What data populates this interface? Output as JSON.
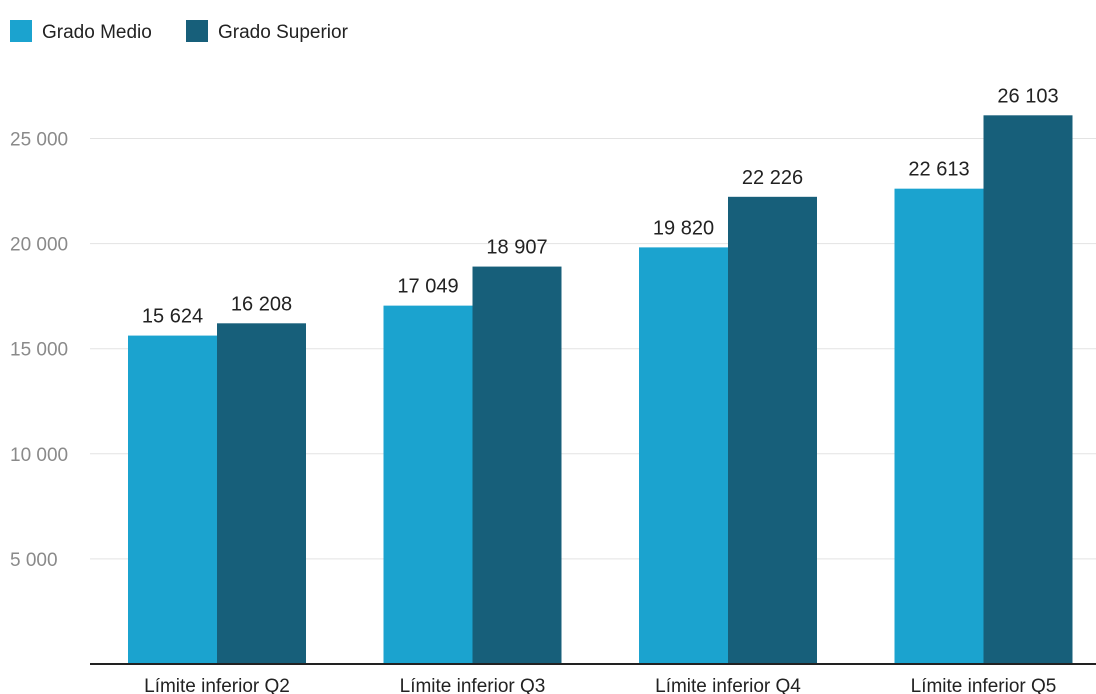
{
  "chart_data": {
    "type": "bar",
    "title": "",
    "xlabel": "",
    "ylabel": "",
    "categories": [
      "Límite inferior Q2",
      "Límite inferior Q3",
      "Límite inferior Q4",
      "Límite inferior Q5"
    ],
    "series": [
      {
        "name": "Grado Medio",
        "color": "#1ba3cf",
        "values": [
          15624,
          17049,
          19820,
          22613
        ]
      },
      {
        "name": "Grado Superior",
        "color": "#175f7a",
        "values": [
          16208,
          18907,
          22226,
          26103
        ]
      }
    ],
    "value_labels": [
      [
        "15 624",
        "17 049",
        "19 820",
        "22 613"
      ],
      [
        "16 208",
        "18 907",
        "22 226",
        "26 103"
      ]
    ],
    "y_ticks": [
      5000,
      10000,
      15000,
      20000,
      25000
    ],
    "y_tick_labels": [
      "5 000",
      "10 000",
      "15 000",
      "20 000",
      "25 000"
    ],
    "ylim": [
      0,
      26103
    ],
    "grid": true,
    "legend_position": "top-left"
  }
}
